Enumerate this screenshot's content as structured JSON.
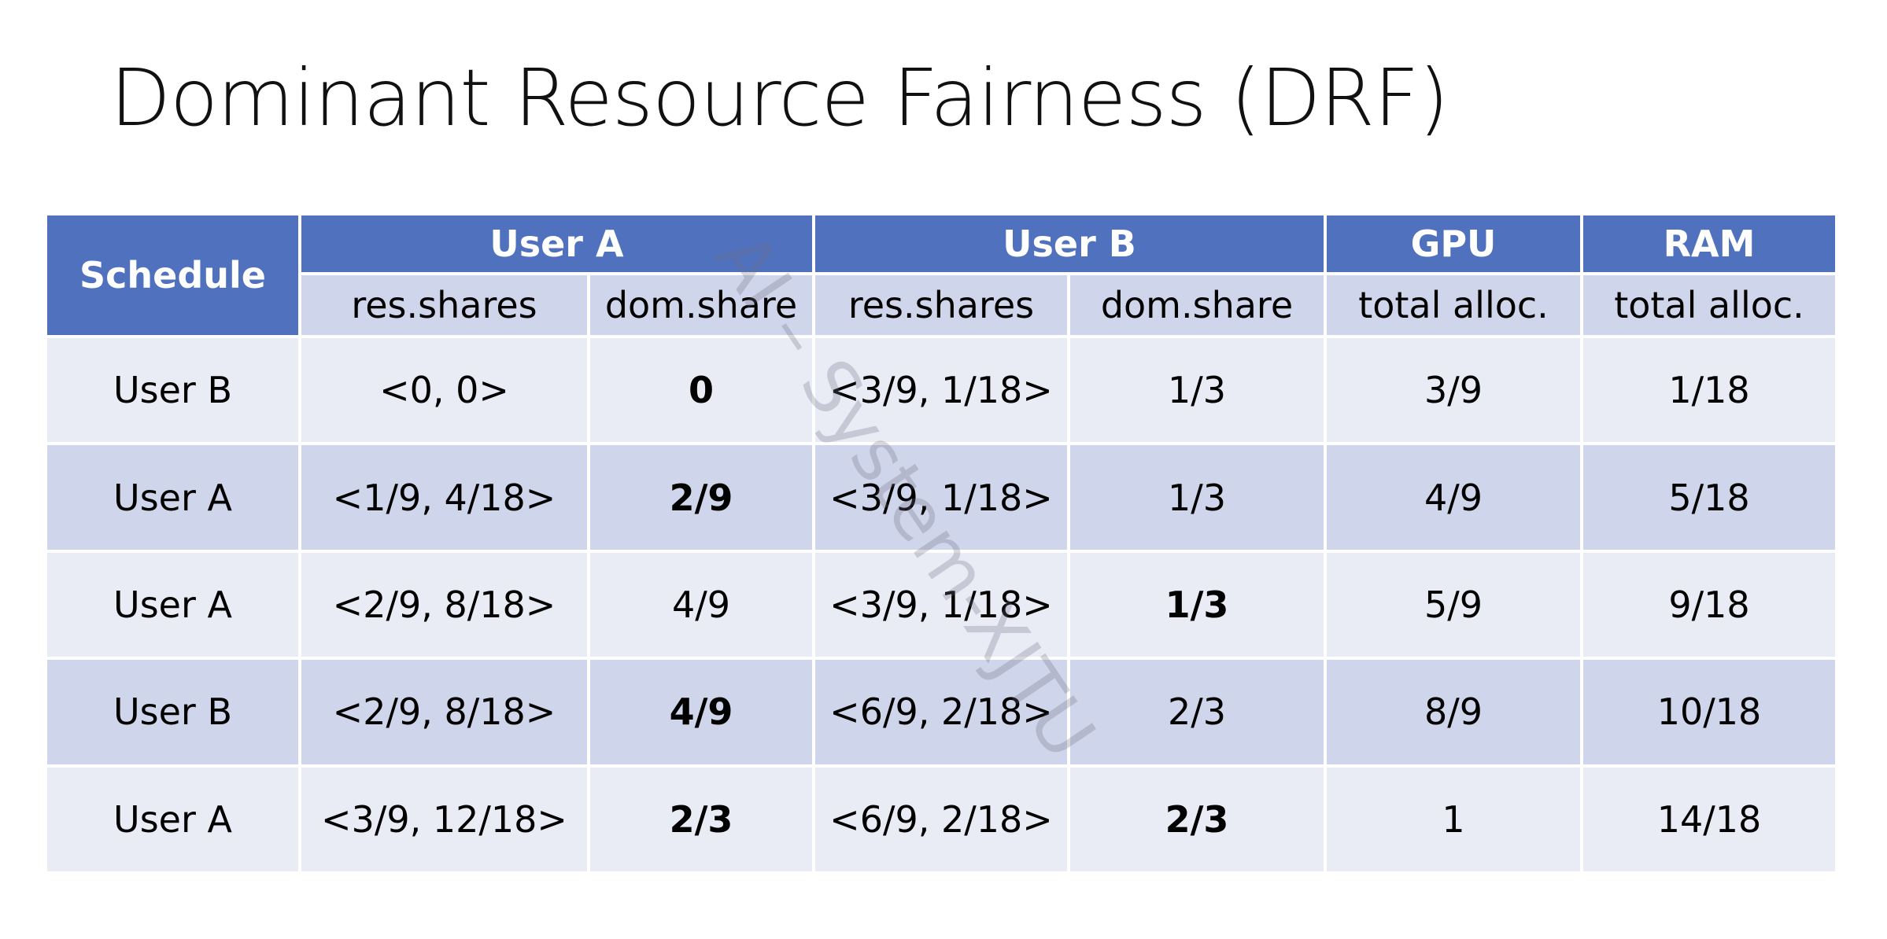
{
  "title": "Dominant Resource Fairness (DRF)",
  "watermark": "AI – System-XJTU",
  "table": {
    "header": {
      "schedule": "Schedule",
      "groups": [
        "User A",
        "User B",
        "GPU",
        "RAM"
      ],
      "subheaders": [
        "res.shares",
        "dom.share",
        "res.shares",
        "dom.share",
        "total alloc.",
        "total alloc."
      ]
    },
    "rows": [
      {
        "cells": [
          "User B",
          "<0, 0>",
          "0",
          "<3/9, 1/18>",
          "1/3",
          "3/9",
          "1/18"
        ],
        "bold": [
          2
        ]
      },
      {
        "cells": [
          "User A",
          "<1/9, 4/18>",
          "2/9",
          "<3/9, 1/18>",
          "1/3",
          "4/9",
          "5/18"
        ],
        "bold": [
          2
        ]
      },
      {
        "cells": [
          "User A",
          "<2/9, 8/18>",
          "4/9",
          "<3/9, 1/18>",
          "1/3",
          "5/9",
          "9/18"
        ],
        "bold": [
          4
        ]
      },
      {
        "cells": [
          "User B",
          "<2/9, 8/18>",
          "4/9",
          "<6/9, 2/18>",
          "2/3",
          "8/9",
          "10/18"
        ],
        "bold": [
          2
        ]
      },
      {
        "cells": [
          "User A",
          "<3/9, 12/18>",
          "2/3",
          "<6/9, 2/18>",
          "2/3",
          "1",
          "14/18"
        ],
        "bold": [
          2,
          4
        ]
      }
    ]
  }
}
